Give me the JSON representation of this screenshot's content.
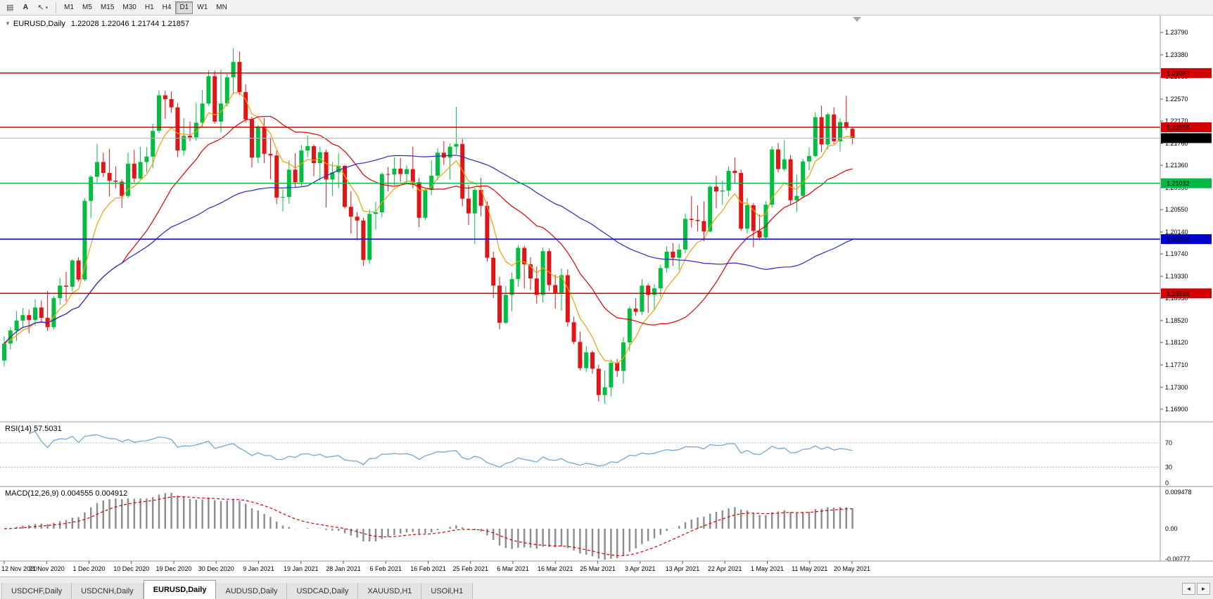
{
  "toolbar": {
    "icons": {
      "chart_list": "▤",
      "cursor": "↖",
      "caret": "▾"
    },
    "text_tool_label": "A",
    "timeframes": [
      "M1",
      "M5",
      "M15",
      "M30",
      "H1",
      "H4",
      "D1",
      "W1",
      "MN"
    ],
    "active_timeframe": "D1"
  },
  "chart": {
    "collapse_arrow": "▼",
    "symbol_title": "EURUSD,Daily",
    "ohlc_text": "1.22028 1.22046 1.21744 1.21857"
  },
  "chart_data": {
    "type": "candlestick",
    "symbol": "EURUSD",
    "timeframe": "Daily",
    "current_bar": {
      "open": "1.22028",
      "high": "1.22046",
      "low": "1.21744",
      "close": "1.21857"
    },
    "colors": {
      "bull": "#00bf40",
      "bear": "#e01515",
      "bid_line": "#b6b6b6"
    },
    "price_axis_ticks": [
      "1.23790",
      "1.23380",
      "1.22980",
      "1.22570",
      "1.22170",
      "1.21760",
      "1.21360",
      "1.20950",
      "1.20550",
      "1.20140",
      "1.19740",
      "1.19330",
      "1.18930",
      "1.18520",
      "1.18120",
      "1.17710",
      "1.17300",
      "1.16900"
    ],
    "date_axis_ticks": [
      "12 Nov 2020",
      "21 Nov 2020",
      "1 Dec 2020",
      "10 Dec 2020",
      "19 Dec 2020",
      "30 Dec 2020",
      "9 Jan 2021",
      "19 Jan 2021",
      "28 Jan 2021",
      "6 Feb 2021",
      "16 Feb 2021",
      "25 Feb 2021",
      "6 Mar 2021",
      "16 Mar 2021",
      "25 Mar 2021",
      "3 Apr 2021",
      "13 Apr 2021",
      "22 Apr 2021",
      "1 May 2021",
      "11 May 2021",
      "20 May 2021"
    ],
    "levels": [
      {
        "price": 1.23047,
        "label": "1.23047",
        "color": "#d40000"
      },
      {
        "price": 1.22055,
        "label": "1.22055",
        "color": "#d40000"
      },
      {
        "price": 1.21032,
        "label": "1.21032",
        "color": "#00b843"
      },
      {
        "price": 1.2001,
        "label": "1.20010",
        "color": "#0000cc"
      },
      {
        "price": 1.19018,
        "label": "1.19018",
        "color": "#d40000"
      }
    ],
    "bid": {
      "price": 1.21857,
      "label": "1.21857"
    },
    "moving_averages": [
      {
        "name": "fast-ma",
        "period": 7,
        "method": "ema",
        "color": "#f2a000"
      },
      {
        "name": "mid-ma",
        "period": 20,
        "method": "sma",
        "color": "#e00000"
      },
      {
        "name": "slow-ma",
        "period": 50,
        "method": "sma",
        "color": "#2828c8"
      }
    ],
    "rsi": {
      "title": "RSI(14) 57.5031",
      "period": 14,
      "value": "57.5031",
      "color": "#6fa8dc",
      "levels": [
        {
          "label": "70",
          "value": 70
        },
        {
          "label": "30",
          "value": 30
        },
        {
          "label": "0",
          "value": 0
        }
      ]
    },
    "macd": {
      "title": "MACD(12,26,9) 0.004555 0.004912",
      "values": "0.004555 0.004912",
      "bar_color": "#8c8c8c",
      "signal_color": "#d40000",
      "axis": [
        {
          "label": "0.009478",
          "value": 0.009478
        },
        {
          "label": "0.00",
          "value": 0
        },
        {
          "label": "-0.00777",
          "value": -0.00777
        }
      ]
    },
    "candles": [
      [
        1.1779,
        1.1823,
        1.1768,
        1.181
      ],
      [
        1.181,
        1.184,
        1.1799,
        1.1834
      ],
      [
        1.1834,
        1.1869,
        1.1815,
        1.1852
      ],
      [
        1.1852,
        1.1875,
        1.184,
        1.1862
      ],
      [
        1.1862,
        1.1872,
        1.1829,
        1.1853
      ],
      [
        1.1853,
        1.1891,
        1.1842,
        1.1876
      ],
      [
        1.1876,
        1.1889,
        1.1848,
        1.1857
      ],
      [
        1.1857,
        1.1906,
        1.1833,
        1.184
      ],
      [
        1.184,
        1.1897,
        1.1836,
        1.1893
      ],
      [
        1.1893,
        1.193,
        1.1881,
        1.1916
      ],
      [
        1.1916,
        1.1941,
        1.1887,
        1.1914
      ],
      [
        1.1914,
        1.1964,
        1.1906,
        1.1962
      ],
      [
        1.1962,
        1.1968,
        1.1923,
        1.1927
      ],
      [
        1.1927,
        1.2076,
        1.1924,
        1.2071
      ],
      [
        1.2071,
        1.2118,
        1.204,
        1.2115
      ],
      [
        1.2115,
        1.2175,
        1.2105,
        1.2142
      ],
      [
        1.2142,
        1.2159,
        1.2115,
        1.2122
      ],
      [
        1.2122,
        1.2166,
        1.2079,
        1.2108
      ],
      [
        1.2108,
        1.2134,
        1.2094,
        1.2106
      ],
      [
        1.2106,
        1.211,
        1.2058,
        1.208
      ],
      [
        1.208,
        1.2159,
        1.2076,
        1.2139
      ],
      [
        1.2139,
        1.2164,
        1.2105,
        1.2112
      ],
      [
        1.2112,
        1.217,
        1.211,
        1.2142
      ],
      [
        1.2142,
        1.2169,
        1.2123,
        1.2152
      ],
      [
        1.2152,
        1.2212,
        1.2131,
        1.2199
      ],
      [
        1.2199,
        1.2273,
        1.2195,
        1.2264
      ],
      [
        1.2264,
        1.2272,
        1.2221,
        1.2257
      ],
      [
        1.2257,
        1.2271,
        1.2232,
        1.2242
      ],
      [
        1.2242,
        1.225,
        1.2151,
        1.2163
      ],
      [
        1.2163,
        1.2222,
        1.2154,
        1.219
      ],
      [
        1.219,
        1.2216,
        1.218,
        1.2187
      ],
      [
        1.2187,
        1.225,
        1.2181,
        1.2214
      ],
      [
        1.2214,
        1.2274,
        1.2205,
        1.2249
      ],
      [
        1.2249,
        1.231,
        1.2245,
        1.2299
      ],
      [
        1.2299,
        1.2309,
        1.2212,
        1.2216
      ],
      [
        1.2216,
        1.2311,
        1.2196,
        1.2249
      ],
      [
        1.2249,
        1.2305,
        1.2244,
        1.2297
      ],
      [
        1.2297,
        1.235,
        1.2266,
        1.2325
      ],
      [
        1.2325,
        1.2344,
        1.2265,
        1.227
      ],
      [
        1.227,
        1.2284,
        1.2214,
        1.222
      ],
      [
        1.222,
        1.2225,
        1.2132,
        1.215
      ],
      [
        1.215,
        1.221,
        1.214,
        1.2207
      ],
      [
        1.2207,
        1.2223,
        1.214,
        1.2157
      ],
      [
        1.2157,
        1.2187,
        1.2111,
        1.2154
      ],
      [
        1.2154,
        1.2163,
        1.2065,
        1.2077
      ],
      [
        1.2077,
        1.2092,
        1.2052,
        1.2078
      ],
      [
        1.2078,
        1.2145,
        1.2066,
        1.2128
      ],
      [
        1.2128,
        1.2158,
        1.2095,
        1.2105
      ],
      [
        1.2105,
        1.2173,
        1.2098,
        1.2163
      ],
      [
        1.2163,
        1.219,
        1.2151,
        1.2171
      ],
      [
        1.2171,
        1.2174,
        1.2116,
        1.214
      ],
      [
        1.214,
        1.217,
        1.2108,
        1.216
      ],
      [
        1.216,
        1.2165,
        1.2059,
        1.211
      ],
      [
        1.211,
        1.2142,
        1.208,
        1.2123
      ],
      [
        1.2123,
        1.2158,
        1.2094,
        1.2135
      ],
      [
        1.2135,
        1.2137,
        1.2057,
        1.206
      ],
      [
        1.206,
        1.2088,
        1.2011,
        1.2042
      ],
      [
        1.2042,
        1.205,
        1.1999,
        1.2035
      ],
      [
        1.2035,
        1.204,
        1.1952,
        1.1963
      ],
      [
        1.1963,
        1.2055,
        1.1956,
        1.2047
      ],
      [
        1.2047,
        1.2069,
        1.2018,
        1.205
      ],
      [
        1.205,
        1.2123,
        1.2041,
        1.212
      ],
      [
        1.212,
        1.2133,
        1.2088,
        1.2119
      ],
      [
        1.2119,
        1.2151,
        1.21,
        1.213
      ],
      [
        1.213,
        1.2149,
        1.2106,
        1.212
      ],
      [
        1.212,
        1.2136,
        1.2101,
        1.2129
      ],
      [
        1.2129,
        1.217,
        1.2094,
        1.2105
      ],
      [
        1.2105,
        1.2113,
        1.2023,
        1.204
      ],
      [
        1.204,
        1.2094,
        1.2036,
        1.2091
      ],
      [
        1.2091,
        1.2145,
        1.2082,
        1.2117
      ],
      [
        1.2117,
        1.2167,
        1.2109,
        1.2159
      ],
      [
        1.2159,
        1.218,
        1.2137,
        1.215
      ],
      [
        1.215,
        1.2176,
        1.211,
        1.217
      ],
      [
        1.217,
        1.2243,
        1.2156,
        1.2175
      ],
      [
        1.2175,
        1.2184,
        1.2061,
        1.2075
      ],
      [
        1.2075,
        1.21,
        1.2027,
        1.2048
      ],
      [
        1.2048,
        1.2095,
        1.1992,
        1.2091
      ],
      [
        1.2091,
        1.2113,
        1.2043,
        1.2062
      ],
      [
        1.2062,
        1.207,
        1.196,
        1.1967
      ],
      [
        1.1967,
        1.1978,
        1.1893,
        1.1916
      ],
      [
        1.1916,
        1.1932,
        1.1836,
        1.1848
      ],
      [
        1.1848,
        1.1915,
        1.1846,
        1.1899
      ],
      [
        1.1899,
        1.194,
        1.1869,
        1.1928
      ],
      [
        1.1928,
        1.199,
        1.1914,
        1.1985
      ],
      [
        1.1985,
        1.1989,
        1.1911,
        1.1955
      ],
      [
        1.1955,
        1.1968,
        1.1908,
        1.1929
      ],
      [
        1.1929,
        1.1951,
        1.1883,
        1.1899
      ],
      [
        1.1899,
        1.1986,
        1.1885,
        1.1979
      ],
      [
        1.1979,
        1.1984,
        1.1906,
        1.1917
      ],
      [
        1.1917,
        1.1936,
        1.1874,
        1.1903
      ],
      [
        1.1903,
        1.1947,
        1.187,
        1.1935
      ],
      [
        1.1935,
        1.1946,
        1.1841,
        1.1849
      ],
      [
        1.1849,
        1.1859,
        1.1809,
        1.1813
      ],
      [
        1.1813,
        1.1832,
        1.1761,
        1.1765
      ],
      [
        1.1765,
        1.1805,
        1.1758,
        1.1794
      ],
      [
        1.1794,
        1.1797,
        1.1755,
        1.1764
      ],
      [
        1.1764,
        1.1771,
        1.1704,
        1.1716
      ],
      [
        1.1716,
        1.1761,
        1.17,
        1.173
      ],
      [
        1.173,
        1.1781,
        1.1713,
        1.1775
      ],
      [
        1.1775,
        1.1782,
        1.1749,
        1.176
      ],
      [
        1.176,
        1.1822,
        1.1737,
        1.1812
      ],
      [
        1.1812,
        1.1878,
        1.1796,
        1.1874
      ],
      [
        1.1874,
        1.1893,
        1.1861,
        1.1868
      ],
      [
        1.1868,
        1.1928,
        1.1862,
        1.1916
      ],
      [
        1.1916,
        1.192,
        1.1866,
        1.1899
      ],
      [
        1.1899,
        1.1919,
        1.1872,
        1.1911
      ],
      [
        1.1911,
        1.1954,
        1.1896,
        1.1948
      ],
      [
        1.1948,
        1.1988,
        1.194,
        1.1978
      ],
      [
        1.1978,
        1.1994,
        1.1952,
        1.1967
      ],
      [
        1.1967,
        1.1992,
        1.1945,
        1.1982
      ],
      [
        1.1982,
        1.2048,
        1.1975,
        1.2038
      ],
      [
        1.2038,
        1.208,
        1.2022,
        1.2036
      ],
      [
        1.2036,
        1.2063,
        1.2015,
        1.2034
      ],
      [
        1.2034,
        1.207,
        1.1997,
        1.2015
      ],
      [
        1.2015,
        1.21,
        1.2013,
        1.2097
      ],
      [
        1.2097,
        1.2117,
        1.2057,
        1.2088
      ],
      [
        1.2088,
        1.2108,
        1.2064,
        1.209
      ],
      [
        1.209,
        1.2134,
        1.208,
        1.2126
      ],
      [
        1.2126,
        1.215,
        1.2103,
        1.2122
      ],
      [
        1.2122,
        1.2128,
        1.2016,
        1.202
      ],
      [
        1.202,
        1.2076,
        1.2011,
        1.2063
      ],
      [
        1.2063,
        1.2067,
        1.1986,
        1.2016
      ],
      [
        1.2016,
        1.2046,
        1.1999,
        1.2004
      ],
      [
        1.2004,
        1.2071,
        1.2,
        1.2064
      ],
      [
        1.2064,
        1.2171,
        1.2059,
        1.2165
      ],
      [
        1.2165,
        1.2177,
        1.2123,
        1.2129
      ],
      [
        1.2129,
        1.2182,
        1.2125,
        1.2147
      ],
      [
        1.2147,
        1.2155,
        1.2065,
        1.2072
      ],
      [
        1.2072,
        1.2119,
        1.2051,
        1.208
      ],
      [
        1.208,
        1.2148,
        1.2076,
        1.2143
      ],
      [
        1.2143,
        1.2169,
        1.2127,
        1.2153
      ],
      [
        1.2153,
        1.2233,
        1.2151,
        1.2224
      ],
      [
        1.2224,
        1.2245,
        1.216,
        1.2174
      ],
      [
        1.2174,
        1.2232,
        1.2165,
        1.2229
      ],
      [
        1.2229,
        1.2242,
        1.2175,
        1.218
      ],
      [
        1.218,
        1.2222,
        1.2161,
        1.2215
      ],
      [
        1.2215,
        1.2263,
        1.2201,
        1.2205
      ],
      [
        1.22028,
        1.22046,
        1.21744,
        1.21857
      ]
    ]
  },
  "tabs": {
    "items": [
      {
        "label": "USDCHF,Daily"
      },
      {
        "label": "USDCNH,Daily"
      },
      {
        "label": "EURUSD,Daily"
      },
      {
        "label": "AUDUSD,Daily"
      },
      {
        "label": "USDCAD,Daily"
      },
      {
        "label": "XAUUSD,H1"
      },
      {
        "label": "USOil,H1"
      }
    ],
    "active": "EURUSD,Daily",
    "scroll_left": "◄",
    "scroll_right": "►"
  }
}
